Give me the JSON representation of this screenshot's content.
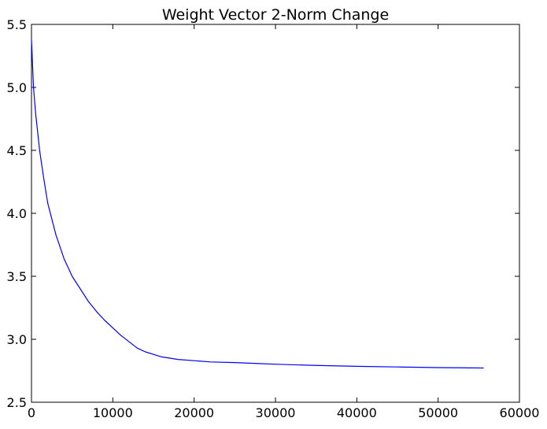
{
  "chart_data": {
    "type": "line",
    "title": "Weight Vector 2-Norm Change",
    "xlabel": "",
    "ylabel": "",
    "xlim": [
      0,
      60000
    ],
    "ylim": [
      2.5,
      5.5
    ],
    "grid": false,
    "x_ticks": [
      0,
      10000,
      20000,
      30000,
      40000,
      50000,
      60000
    ],
    "y_ticks": [
      2.5,
      3.0,
      3.5,
      4.0,
      4.5,
      5.0,
      5.5
    ],
    "x_tick_labels": [
      "0",
      "10000",
      "20000",
      "30000",
      "40000",
      "50000",
      "60000"
    ],
    "y_tick_labels": [
      "2.5",
      "3.0",
      "3.5",
      "4.0",
      "4.5",
      "5.0",
      "5.5"
    ],
    "series": [
      {
        "color": "#0000ff",
        "x": [
          0,
          250,
          500,
          1000,
          1500,
          2000,
          3000,
          4000,
          5000,
          6000,
          7000,
          8000,
          9000,
          10000,
          11000,
          12000,
          13000,
          14000,
          15000,
          16000,
          17000,
          18000,
          20000,
          22000,
          25000,
          28000,
          30000,
          35000,
          40000,
          45000,
          50000,
          55600
        ],
        "y": [
          5.38,
          5.0,
          4.8,
          4.5,
          4.28,
          4.08,
          3.83,
          3.64,
          3.5,
          3.4,
          3.3,
          3.22,
          3.15,
          3.09,
          3.03,
          2.98,
          2.93,
          2.9,
          2.88,
          2.86,
          2.85,
          2.84,
          2.83,
          2.82,
          2.815,
          2.807,
          2.802,
          2.792,
          2.785,
          2.78,
          2.775,
          2.772
        ]
      }
    ]
  }
}
